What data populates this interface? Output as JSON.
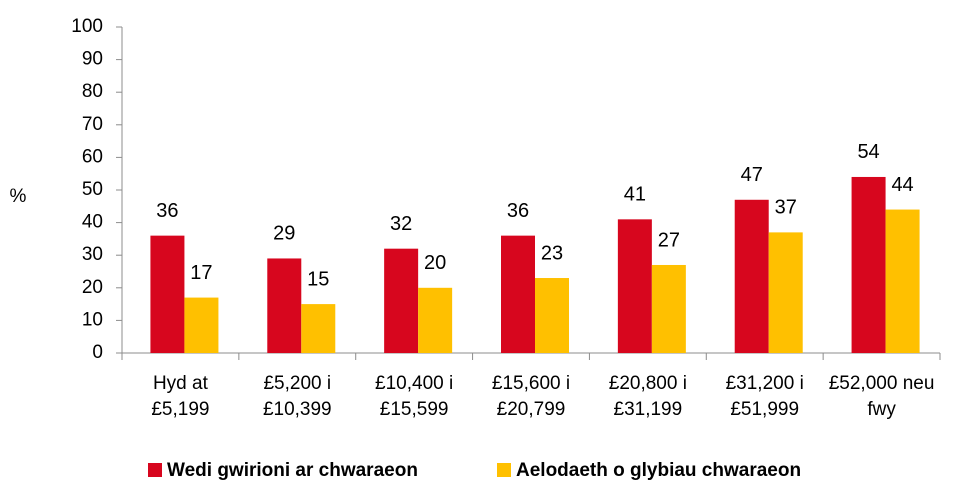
{
  "chart_data": {
    "type": "bar",
    "y_label": "%",
    "categories": [
      [
        "Hyd at",
        "£5,199"
      ],
      [
        "£5,200 i",
        "£10,399"
      ],
      [
        "£10,400 i",
        "£15,599"
      ],
      [
        "£15,600 i",
        "£20,799"
      ],
      [
        "£20,800 i",
        "£31,199"
      ],
      [
        "£31,200 i",
        "£51,999"
      ],
      [
        "£52,000 neu",
        "fwy"
      ]
    ],
    "series": [
      {
        "name": "Wedi gwirioni ar chwaraeon",
        "color": "#d7061e",
        "values": [
          36,
          29,
          32,
          36,
          41,
          47,
          54
        ]
      },
      {
        "name": "Aelodaeth o glybiau chwaraeon",
        "color": "#ffc000",
        "values": [
          17,
          15,
          20,
          23,
          27,
          37,
          44
        ]
      }
    ],
    "ylim": [
      0,
      100
    ],
    "yticks": [
      0,
      10,
      20,
      30,
      40,
      50,
      60,
      70,
      80,
      90,
      100
    ],
    "grid": false,
    "legend": "bottom"
  }
}
